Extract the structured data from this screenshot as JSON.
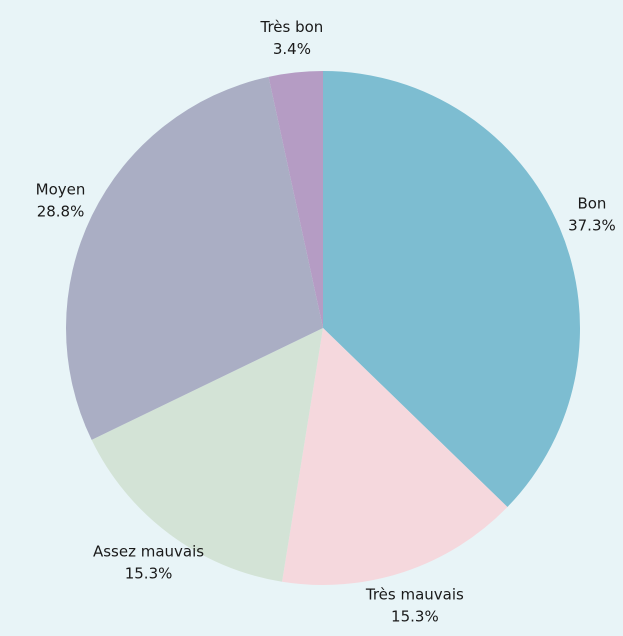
{
  "chart_data": {
    "type": "pie",
    "categories": [
      "Bon",
      "Très mauvais",
      "Assez mauvais",
      "Moyen",
      "Très bon"
    ],
    "values": [
      37.3,
      15.3,
      15.3,
      28.8,
      3.4
    ],
    "value_labels": [
      "37.3%",
      "15.3%",
      "15.3%",
      "28.8%",
      "3.4%"
    ],
    "colors": [
      "#7dbdd1",
      "#f5d8dd",
      "#d3e3d6",
      "#aaaec4",
      "#b59cc4"
    ]
  }
}
